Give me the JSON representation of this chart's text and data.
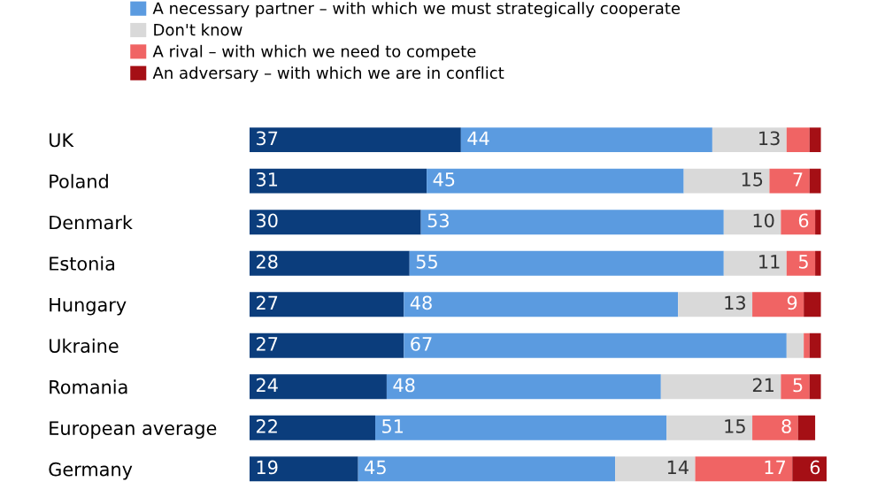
{
  "chart_data": {
    "type": "bar",
    "orientation": "horizontal",
    "stacked": true,
    "categories": [
      "UK",
      "Poland",
      "Denmark",
      "Estonia",
      "Hungary",
      "Ukraine",
      "Romania",
      "European average",
      "Germany"
    ],
    "series": [
      {
        "color": "#0b3d7c",
        "values": [
          37,
          31,
          30,
          28,
          27,
          27,
          24,
          22,
          19
        ],
        "value_labels": [
          "37",
          "31",
          "30",
          "28",
          "27",
          "27",
          "24",
          "22",
          "19"
        ]
      },
      {
        "name": "A necessary partner – with which we must strategically cooperate",
        "color": "#5b9be0",
        "values": [
          44,
          45,
          53,
          55,
          48,
          67,
          48,
          51,
          45
        ],
        "value_labels": [
          "44",
          "45",
          "53",
          "55",
          "48",
          "67",
          "48",
          "51",
          "45"
        ]
      },
      {
        "name": "Don't know",
        "color": "#d9d9d9",
        "values": [
          13,
          15,
          10,
          11,
          13,
          3,
          21,
          15,
          14
        ],
        "value_labels": [
          "13",
          "15",
          "10",
          "11",
          "13",
          null,
          "21",
          "15",
          "14"
        ]
      },
      {
        "name": "A rival – with which we need to compete",
        "color": "#f06464",
        "values": [
          4,
          7,
          6,
          5,
          9,
          1,
          5,
          8,
          17
        ],
        "value_labels": [
          null,
          "7",
          "6",
          "5",
          "9",
          null,
          "5",
          "8",
          "17"
        ]
      },
      {
        "name": "An adversary – with which we are in conflict",
        "color": "#a50f15",
        "values": [
          2,
          2,
          1,
          1,
          3,
          2,
          2,
          3,
          6
        ],
        "value_labels": [
          null,
          null,
          null,
          null,
          null,
          null,
          null,
          null,
          "6"
        ]
      }
    ],
    "xlim": [
      0,
      101
    ],
    "tick_labels": "y",
    "legend": "top left"
  }
}
